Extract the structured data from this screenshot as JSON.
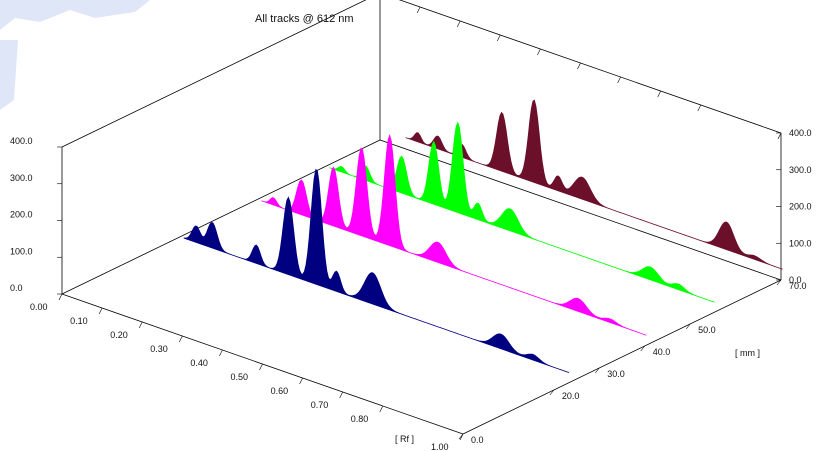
{
  "chart_data": {
    "type": "area",
    "title": "All tracks @ 612 nm",
    "x_axis": {
      "label": "[ Rf ]",
      "ticks": [
        "0.00",
        "0.10",
        "0.20",
        "0.30",
        "0.40",
        "0.50",
        "0.60",
        "0.70",
        "0.80",
        "1.00"
      ],
      "range": [
        0,
        1
      ]
    },
    "y_axis": {
      "label": "",
      "ticks": [
        "0.0",
        "100.0",
        "200.0",
        "300.0",
        "400.0"
      ],
      "range": [
        0,
        400
      ]
    },
    "z_axis": {
      "label": "[ mm ]",
      "ticks": [
        "0.0",
        "20.0",
        "30.0",
        "40.0",
        "50.0",
        "70.0"
      ],
      "range": [
        0,
        70
      ]
    },
    "series": [
      {
        "color": "#000080",
        "track_mm": 26,
        "peaks": [
          {
            "rf": 0.04,
            "au": 45,
            "width": 0.01
          },
          {
            "rf": 0.08,
            "au": 70,
            "width": 0.012
          },
          {
            "rf": 0.19,
            "au": 50,
            "width": 0.01
          },
          {
            "rf": 0.27,
            "au": 210,
            "width": 0.013
          },
          {
            "rf": 0.34,
            "au": 315,
            "width": 0.013
          },
          {
            "rf": 0.39,
            "au": 55,
            "width": 0.01
          },
          {
            "rf": 0.48,
            "au": 85,
            "width": 0.02
          },
          {
            "rf": 0.8,
            "au": 40,
            "width": 0.02
          },
          {
            "rf": 0.88,
            "au": 15,
            "width": 0.015
          }
        ]
      },
      {
        "color": "#ff00ff",
        "track_mm": 43,
        "peaks": [
          {
            "rf": 0.04,
            "au": 20,
            "width": 0.008
          },
          {
            "rf": 0.11,
            "au": 95,
            "width": 0.012
          },
          {
            "rf": 0.19,
            "au": 160,
            "width": 0.012
          },
          {
            "rf": 0.26,
            "au": 240,
            "width": 0.013
          },
          {
            "rf": 0.33,
            "au": 300,
            "width": 0.013
          },
          {
            "rf": 0.45,
            "au": 55,
            "width": 0.02
          },
          {
            "rf": 0.8,
            "au": 35,
            "width": 0.02
          },
          {
            "rf": 0.88,
            "au": 10,
            "width": 0.015
          }
        ]
      },
      {
        "color": "#00ff00",
        "track_mm": 58,
        "peaks": [
          {
            "rf": 0.04,
            "au": 15,
            "width": 0.008
          },
          {
            "rf": 0.1,
            "au": 40,
            "width": 0.01
          },
          {
            "rf": 0.19,
            "au": 100,
            "width": 0.012
          },
          {
            "rf": 0.27,
            "au": 170,
            "width": 0.012
          },
          {
            "rf": 0.33,
            "au": 245,
            "width": 0.013
          },
          {
            "rf": 0.38,
            "au": 45,
            "width": 0.01
          },
          {
            "rf": 0.46,
            "au": 60,
            "width": 0.02
          },
          {
            "rf": 0.81,
            "au": 35,
            "width": 0.02
          },
          {
            "rf": 0.88,
            "au": 15,
            "width": 0.015
          }
        ]
      },
      {
        "color": "#6b0f2b",
        "track_mm": 73,
        "peaks": [
          {
            "rf": 0.06,
            "au": 25,
            "width": 0.008
          },
          {
            "rf": 0.11,
            "au": 35,
            "width": 0.01
          },
          {
            "rf": 0.17,
            "au": 35,
            "width": 0.01
          },
          {
            "rf": 0.27,
            "au": 160,
            "width": 0.013
          },
          {
            "rf": 0.35,
            "au": 225,
            "width": 0.013
          },
          {
            "rf": 0.41,
            "au": 40,
            "width": 0.01
          },
          {
            "rf": 0.47,
            "au": 60,
            "width": 0.02
          },
          {
            "rf": 0.83,
            "au": 75,
            "width": 0.018
          },
          {
            "rf": 0.9,
            "au": 10,
            "width": 0.015
          }
        ]
      }
    ]
  }
}
